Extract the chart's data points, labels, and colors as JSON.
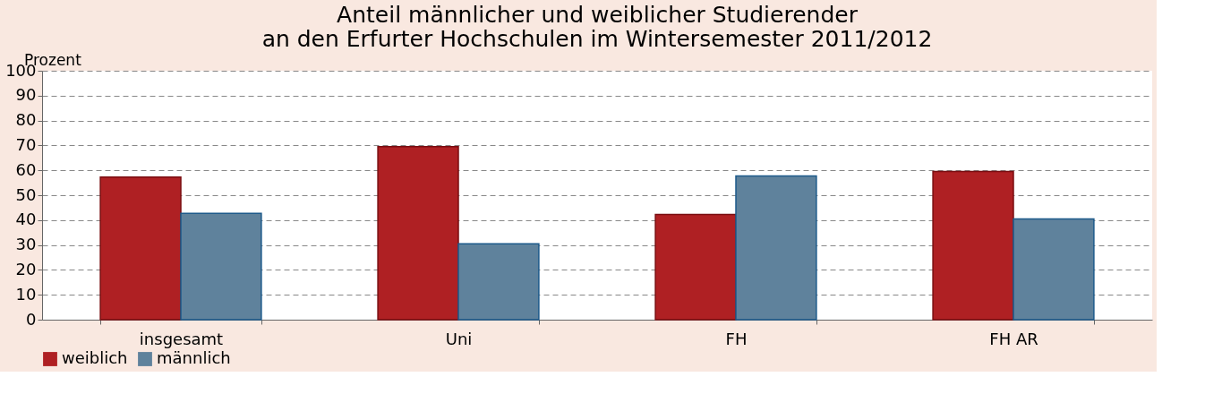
{
  "chart_data": {
    "type": "bar",
    "title": [
      "Anteil männlicher und weiblicher Studierender",
      "an den Erfurter Hochschulen im Wintersemester 2011/2012"
    ],
    "ylabel": "Prozent",
    "categories": [
      "insgesamt",
      "Uni",
      "FH",
      "FH AR"
    ],
    "series": [
      {
        "name": "weiblich",
        "color": "#af2023",
        "values": [
          57.3,
          69.5,
          42.3,
          59.5
        ]
      },
      {
        "name": "männlich",
        "color": "#5f829c",
        "values": [
          42.7,
          30.5,
          57.7,
          40.5
        ]
      }
    ],
    "ylim": [
      0,
      100
    ],
    "yticks": [
      0,
      10,
      20,
      30,
      40,
      50,
      60,
      70,
      80,
      90,
      100
    ],
    "grid": "y",
    "legend": "bottom"
  }
}
